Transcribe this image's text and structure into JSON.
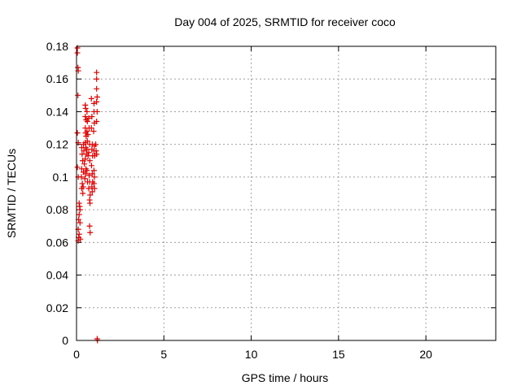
{
  "chart_data": {
    "type": "scatter",
    "title": "Day 004 of 2025, SRMTID for receiver coco",
    "xlabel": "GPS time / hours",
    "ylabel": "SRMTID / TECUs",
    "xlim": [
      0,
      24
    ],
    "ylim": [
      0,
      0.18
    ],
    "xticks": [
      0,
      5,
      10,
      15,
      20
    ],
    "xtick_labels": [
      "0",
      "5",
      "10",
      "15",
      "20"
    ],
    "yticks": [
      0,
      0.02,
      0.04,
      0.06,
      0.08,
      0.1,
      0.12,
      0.14,
      0.16,
      0.18
    ],
    "ytick_labels": [
      "0",
      "0.02",
      "0.04",
      "0.06",
      "0.08",
      "0.1",
      "0.12",
      "0.14",
      "0.16",
      "0.18"
    ],
    "grid": true,
    "marker": "+",
    "point_color": "#e00000",
    "series": [
      {
        "points": [
          [
            0.05,
            0.179
          ],
          [
            0.05,
            0.176
          ],
          [
            0.08,
            0.167
          ],
          [
            0.1,
            0.165
          ],
          [
            0.08,
            0.15
          ],
          [
            0.05,
            0.127
          ],
          [
            0.1,
            0.121
          ],
          [
            0.05,
            0.106
          ],
          [
            0.1,
            0.1
          ],
          [
            0.15,
            0.084
          ],
          [
            0.18,
            0.082
          ],
          [
            0.2,
            0.08
          ],
          [
            0.15,
            0.077
          ],
          [
            0.12,
            0.074
          ],
          [
            0.2,
            0.072
          ],
          [
            0.1,
            0.068
          ],
          [
            0.15,
            0.065
          ],
          [
            0.12,
            0.063
          ],
          [
            0.1,
            0.061
          ],
          [
            0.22,
            0.062
          ],
          [
            0.3,
            0.118
          ],
          [
            0.32,
            0.114
          ],
          [
            0.35,
            0.11
          ],
          [
            0.3,
            0.105
          ],
          [
            0.28,
            0.1
          ],
          [
            0.33,
            0.096
          ],
          [
            0.3,
            0.093
          ],
          [
            0.36,
            0.09
          ],
          [
            0.4,
            0.12
          ],
          [
            0.42,
            0.116
          ],
          [
            0.45,
            0.108
          ],
          [
            0.4,
            0.103
          ],
          [
            0.48,
            0.099
          ],
          [
            0.38,
            0.094
          ],
          [
            0.5,
            0.144
          ],
          [
            0.52,
            0.142
          ],
          [
            0.5,
            0.137
          ],
          [
            0.55,
            0.135
          ],
          [
            0.5,
            0.13
          ],
          [
            0.52,
            0.127
          ],
          [
            0.55,
            0.125
          ],
          [
            0.5,
            0.121
          ],
          [
            0.53,
            0.118
          ],
          [
            0.56,
            0.114
          ],
          [
            0.5,
            0.111
          ],
          [
            0.54,
            0.105
          ],
          [
            0.52,
            0.102
          ],
          [
            0.6,
            0.14
          ],
          [
            0.62,
            0.134
          ],
          [
            0.6,
            0.128
          ],
          [
            0.65,
            0.126
          ],
          [
            0.62,
            0.122
          ],
          [
            0.6,
            0.117
          ],
          [
            0.66,
            0.113
          ],
          [
            0.6,
            0.104
          ],
          [
            0.63,
            0.097
          ],
          [
            0.7,
            0.136
          ],
          [
            0.72,
            0.13
          ],
          [
            0.75,
            0.12
          ],
          [
            0.7,
            0.115
          ],
          [
            0.76,
            0.11
          ],
          [
            0.72,
            0.101
          ],
          [
            0.75,
            0.097
          ],
          [
            0.7,
            0.093
          ],
          [
            0.78,
            0.089
          ],
          [
            0.75,
            0.086
          ],
          [
            0.77,
            0.084
          ],
          [
            0.75,
            0.07
          ],
          [
            0.78,
            0.066
          ],
          [
            0.85,
            0.148
          ],
          [
            0.88,
            0.137
          ],
          [
            0.85,
            0.13
          ],
          [
            0.9,
            0.12
          ],
          [
            0.88,
            0.117
          ],
          [
            0.92,
            0.113
          ],
          [
            0.86,
            0.107
          ],
          [
            0.9,
            0.102
          ],
          [
            0.92,
            0.097
          ],
          [
            0.88,
            0.094
          ],
          [
            0.9,
            0.091
          ],
          [
            1.0,
            0.145
          ],
          [
            1.0,
            0.14
          ],
          [
            1.02,
            0.133
          ],
          [
            0.98,
            0.128
          ],
          [
            1.02,
            0.119
          ],
          [
            1.0,
            0.116
          ],
          [
            1.04,
            0.113
          ],
          [
            1.0,
            0.104
          ],
          [
            1.02,
            0.1
          ],
          [
            1.0,
            0.096
          ],
          [
            1.03,
            0.093
          ],
          [
            1.15,
            0.164
          ],
          [
            1.15,
            0.16
          ],
          [
            1.15,
            0.154
          ],
          [
            1.18,
            0.149
          ],
          [
            1.15,
            0.146
          ],
          [
            1.18,
            0.14
          ],
          [
            1.15,
            0.134
          ],
          [
            1.1,
            0.12
          ],
          [
            1.12,
            0.116
          ],
          [
            1.15,
            0.114
          ],
          [
            1.18,
            0.001
          ],
          [
            1.2,
            0.0
          ]
        ]
      }
    ]
  }
}
